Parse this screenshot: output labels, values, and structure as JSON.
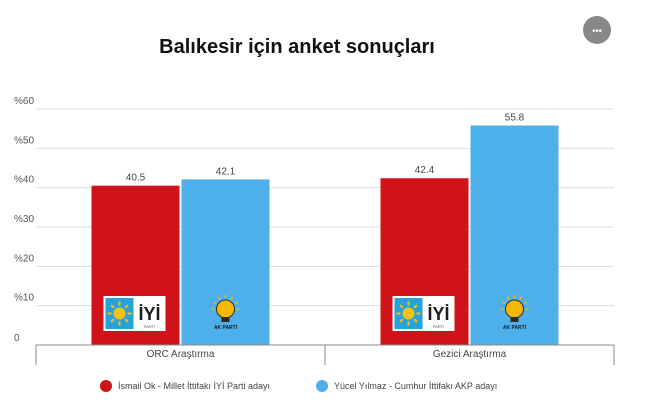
{
  "menu_button": {
    "icon": "more-icon",
    "glyph": "•••"
  },
  "chart_data": {
    "type": "bar",
    "title": "Balıkesir için anket sonuçları",
    "categories": [
      "ORC Araştırma",
      "Gezici Araştırma"
    ],
    "series": [
      {
        "name": "İsmail Ok - Millet İttifakı İYİ Parti adayı",
        "color": "#d0121b",
        "values": [
          40.5,
          42.4
        ],
        "logo_icon": "iyi-parti-logo"
      },
      {
        "name": "Yücel Yılmaz - Cumhur İttifakı AKP adayı",
        "color": "#4eb0ea",
        "values": [
          42.1,
          55.8
        ],
        "logo_icon": "ak-parti-logo"
      }
    ],
    "ylim": [
      0,
      60
    ],
    "yticks": [
      0,
      10,
      20,
      30,
      40,
      50,
      60
    ],
    "ytick_labels": [
      "0",
      "%10",
      "%20",
      "%30",
      "%40",
      "%50",
      "%60"
    ],
    "grid": true,
    "legend_position": "bottom",
    "logo_text": {
      "iyi": "İYİ",
      "iyi_sub": "PARTİ",
      "ak": "AK PARTİ"
    }
  }
}
